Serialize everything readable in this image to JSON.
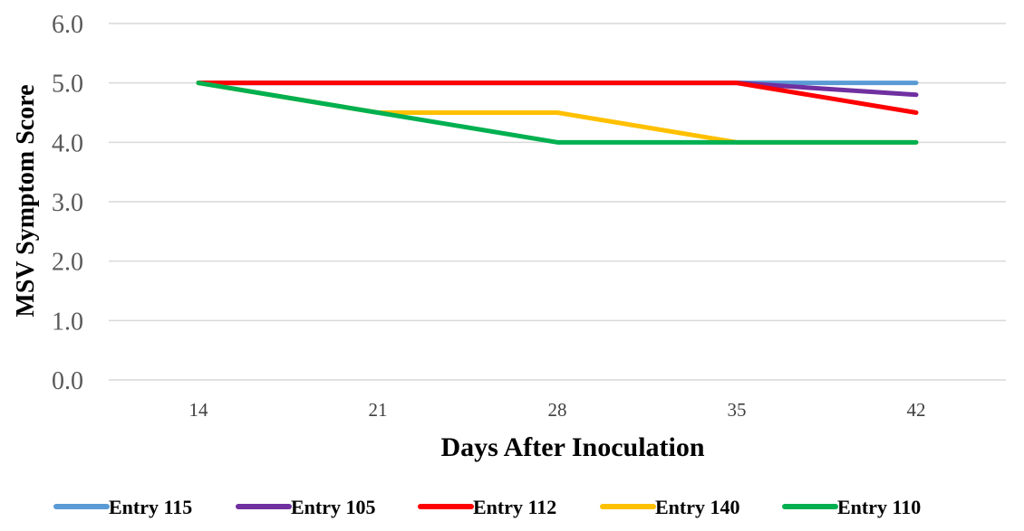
{
  "chart_data": {
    "type": "line",
    "title": "",
    "xlabel": "Days After Inoculation",
    "ylabel": "MSV Symptom  Score",
    "categories": [
      "14",
      "21",
      "28",
      "35",
      "42"
    ],
    "ylim": [
      0,
      6
    ],
    "yticks": [
      "0.0",
      "1.0",
      "2.0",
      "3.0",
      "4.0",
      "5.0",
      "6.0"
    ],
    "grid": true,
    "legend_position": "bottom",
    "series": [
      {
        "name": "Entry 115",
        "color": "#5B9BD5",
        "values": [
          5.0,
          5.0,
          5.0,
          5.0,
          5.0
        ]
      },
      {
        "name": "Entry 105",
        "color": "#7030A0",
        "values": [
          5.0,
          5.0,
          5.0,
          5.0,
          4.8
        ]
      },
      {
        "name": "Entry 112",
        "color": "#FF0000",
        "values": [
          5.0,
          5.0,
          5.0,
          5.0,
          4.5
        ]
      },
      {
        "name": "Entry 140",
        "color": "#FFC000",
        "values": [
          5.0,
          4.5,
          4.5,
          4.0,
          4.0
        ]
      },
      {
        "name": "Entry 110",
        "color": "#00B050",
        "values": [
          5.0,
          4.5,
          4.0,
          4.0,
          4.0
        ]
      }
    ]
  }
}
